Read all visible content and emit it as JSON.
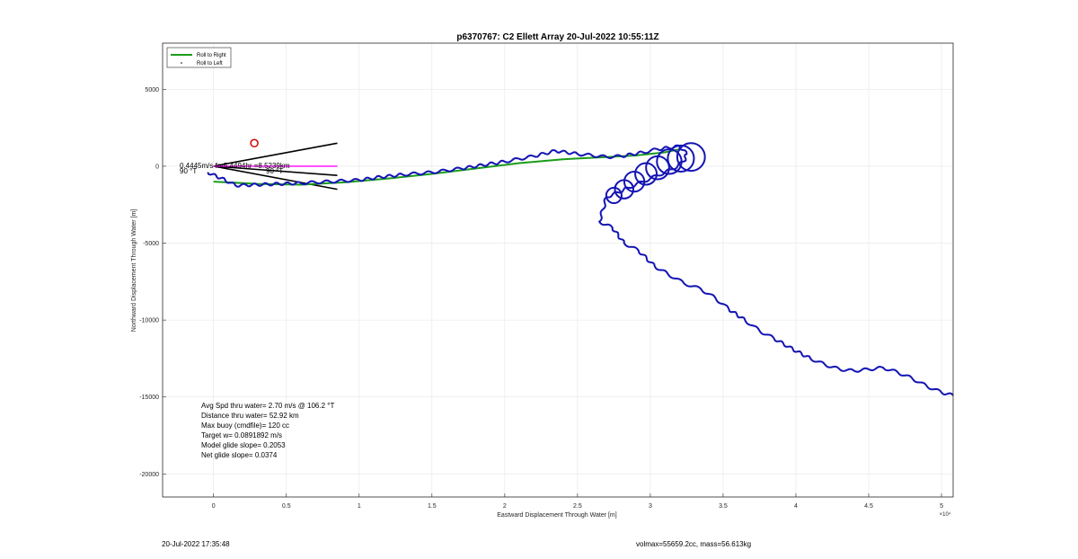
{
  "chart_data": {
    "type": "line",
    "title": "p6370767: C2 Ellett Array 20-Jul-2022 10:55:11Z",
    "xlabel": "Eastward Displacement Through Water [m]",
    "ylabel": "Northward Displacement Through Water [m]",
    "x_exponent_label": "×10⁴",
    "xlim": [
      -3500,
      50800
    ],
    "ylim": [
      -21500,
      8000
    ],
    "x_ticks": [
      0,
      5000,
      10000,
      15000,
      20000,
      25000,
      30000,
      35000,
      40000,
      45000,
      50000
    ],
    "x_tick_labels": [
      "0",
      "0.5",
      "1",
      "1.5",
      "2",
      "2.5",
      "3",
      "3.5",
      "4",
      "4.5",
      "5"
    ],
    "y_ticks": [
      5000,
      0,
      -5000,
      -10000,
      -15000,
      -20000
    ],
    "y_tick_labels": [
      "5000",
      "0",
      "-5000",
      "-10000",
      "-15000",
      "-20000"
    ],
    "grid": true,
    "legend": {
      "placement": "top-left",
      "entries": [
        {
          "label": "Roll to Right",
          "color": "#1a9c1a",
          "style": "line"
        },
        {
          "label": "Roll to Left",
          "color": "#000000",
          "style": "dot"
        }
      ]
    },
    "colors": {
      "track": "#1414b4",
      "model": "#1a9c1a",
      "current": "#ff00ff",
      "target": "#d00000",
      "cone": "#000000"
    },
    "series": [
      {
        "name": "",
        "role": "glider-track",
        "x": [
          -400,
          800,
          1500,
          3000,
          4500,
          6000,
          8000,
          10000,
          11500,
          13000,
          15000,
          17000,
          20000,
          22000,
          23500,
          25000,
          27000,
          28000,
          29500,
          30500,
          32000,
          32500,
          32300,
          31500,
          30500,
          29500,
          28500,
          27800,
          27000,
          26500,
          27400,
          28200,
          29200,
          30300,
          31200,
          32300,
          33500,
          34500,
          35400,
          36500,
          37500,
          38500,
          39800,
          41000,
          42000,
          43000,
          44000,
          45000,
          46000,
          47000,
          48000,
          49000,
          50000,
          50800
        ],
        "y": [
          -400,
          -900,
          -1250,
          -1200,
          -1150,
          -1100,
          -1000,
          -900,
          -700,
          -550,
          -400,
          -150,
          300,
          650,
          1000,
          800,
          600,
          650,
          900,
          1100,
          1300,
          800,
          300,
          -200,
          -600,
          -1000,
          -1400,
          -1700,
          -2000,
          -3600,
          -4000,
          -5000,
          -5500,
          -6500,
          -7000,
          -7600,
          -8000,
          -8600,
          -9300,
          -10000,
          -10700,
          -11200,
          -11900,
          -12500,
          -12900,
          -13200,
          -13300,
          -13200,
          -13100,
          -13400,
          -13800,
          -14300,
          -14700,
          -14900
        ]
      },
      {
        "name": "Roll to Right",
        "role": "model-track",
        "x": [
          0,
          3000,
          6000,
          9000,
          12000,
          15000,
          18000,
          21000,
          24000,
          27000,
          29000,
          31000,
          32000
        ],
        "y": [
          -1000,
          -1150,
          -1200,
          -1050,
          -800,
          -500,
          -150,
          200,
          450,
          600,
          700,
          900,
          1100
        ]
      }
    ],
    "loops": [
      {
        "cx": 27500,
        "cy": -1900,
        "r": 500
      },
      {
        "cx": 28200,
        "cy": -1500,
        "r": 600
      },
      {
        "cx": 28900,
        "cy": -1000,
        "r": 650
      },
      {
        "cx": 29700,
        "cy": -500,
        "r": 700
      },
      {
        "cx": 30500,
        "cy": -100,
        "r": 750
      },
      {
        "cx": 31300,
        "cy": 300,
        "r": 800
      },
      {
        "cx": 32100,
        "cy": 500,
        "r": 850
      },
      {
        "cx": 32800,
        "cy": 600,
        "r": 900
      }
    ],
    "target": {
      "x": 2800,
      "y": 1500
    },
    "current_vector": {
      "x": [
        0,
        8500
      ],
      "y": [
        0,
        0
      ]
    },
    "cone_lines": [
      {
        "x": [
          0,
          8500
        ],
        "y": [
          0,
          1500
        ]
      },
      {
        "x": [
          0,
          8500
        ],
        "y": [
          0,
          -1500
        ]
      },
      {
        "x": [
          0,
          8500
        ],
        "y": [
          0,
          -600
        ]
      }
    ],
    "annotations": {
      "current_text": "0.4445m/s for5.4494hr =8.5239km",
      "heading_left": "90 °T",
      "heading_right": "90 °T",
      "stats": [
        "Avg Spd thru water=  2.70 m/s @ 106.2 °T",
        "Distance thru water= 52.92 km",
        "Max buoy (cmdfile)= 120 cc",
        "Target w= 0.0891892 m/s",
        "Model glide slope= 0.2053",
        "Net glide slope= 0.0374"
      ]
    }
  },
  "footer": {
    "timestamp": "20-Jul-2022 17:35:48",
    "volume_mass": "volmax=55659.2cc, mass=56.613kg"
  }
}
